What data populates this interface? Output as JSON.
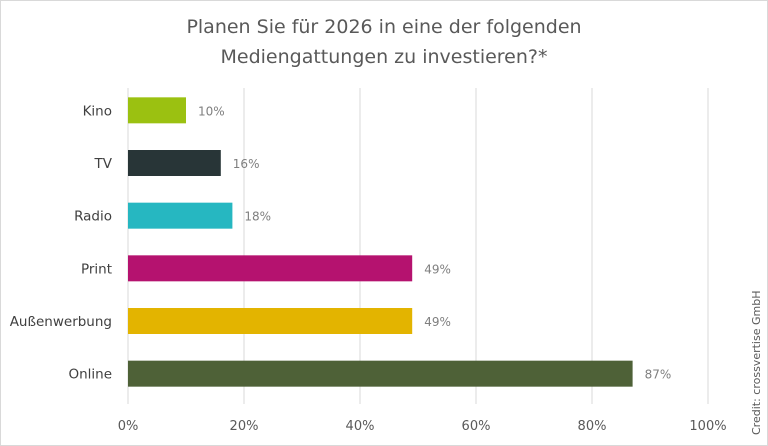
{
  "chart_data": {
    "type": "bar",
    "orientation": "horizontal",
    "title_lines": [
      "Planen Sie für 2026 in eine der folgenden",
      "Mediengattungen zu investieren?*"
    ],
    "categories": [
      "Kino",
      "TV",
      "Radio",
      "Print",
      "Außenwerbung",
      "Online"
    ],
    "values": [
      10,
      16,
      18,
      49,
      49,
      87
    ],
    "data_labels": [
      "10%",
      "16%",
      "18%",
      "49%",
      "49%",
      "87%"
    ],
    "colors": [
      "#9bc111",
      "#283537",
      "#26b7c1",
      "#b5126f",
      "#e3b400",
      "#4e6137"
    ],
    "xlim": [
      0,
      100
    ],
    "x_ticks": [
      0,
      20,
      40,
      60,
      80,
      100
    ],
    "x_tick_labels": [
      "0%",
      "20%",
      "40%",
      "60%",
      "80%",
      "100%"
    ],
    "grid": true,
    "xlabel": "",
    "ylabel": ""
  },
  "credit": "Credit: crossvertise GmbH"
}
